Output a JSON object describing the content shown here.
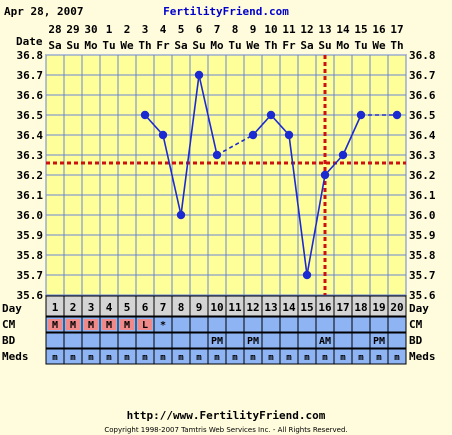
{
  "header": {
    "date": "Apr 28, 2007",
    "site": "FertilityFriend.com"
  },
  "footer": {
    "url": "http://www.FertilityFriend.com",
    "copyright": "Copyright 1998-2007 Tamtris Web Services Inc. - All Rights Reserved."
  },
  "colors": {
    "background": "#fffbdd",
    "plot_area": "#ffff9a",
    "grid": "#6a84d6",
    "line": "#1c2ad2",
    "coverline": "#cc1111",
    "row_blue": "#8fb4f4",
    "row_pink": "#f08a8a",
    "row_grey": "#d4d4d4"
  },
  "chart_data": {
    "type": "line",
    "title": "",
    "row_labels": {
      "date": "Date",
      "day": "Day",
      "cm": "CM",
      "bd": "BD",
      "meds": "Meds"
    },
    "dates": [
      "28",
      "29",
      "30",
      "1",
      "2",
      "3",
      "4",
      "5",
      "6",
      "7",
      "8",
      "9",
      "10",
      "11",
      "12",
      "13",
      "14",
      "15",
      "16",
      "17"
    ],
    "weekdays": [
      "Sa",
      "Su",
      "Mo",
      "Tu",
      "We",
      "Th",
      "Fr",
      "Sa",
      "Su",
      "Mo",
      "Tu",
      "We",
      "Th",
      "Fr",
      "Sa",
      "Su",
      "Mo",
      "Tu",
      "We",
      "Th"
    ],
    "days": [
      1,
      2,
      3,
      4,
      5,
      6,
      7,
      8,
      9,
      10,
      11,
      12,
      13,
      14,
      15,
      16,
      17,
      18,
      19,
      20
    ],
    "temps": [
      null,
      null,
      null,
      null,
      null,
      36.5,
      36.4,
      36.0,
      36.7,
      36.3,
      null,
      36.4,
      36.5,
      36.4,
      35.7,
      36.2,
      36.3,
      36.5,
      null,
      36.5
    ],
    "ylim": [
      35.6,
      36.8
    ],
    "yticks": [
      "36.8",
      "36.7",
      "36.6",
      "36.5",
      "36.4",
      "36.3",
      "36.2",
      "36.1",
      "36.0",
      "35.9",
      "35.8",
      "35.7",
      "35.6"
    ],
    "coverline": 36.26,
    "ovulation_day": 16,
    "cm": [
      "M",
      "M",
      "M",
      "M",
      "M",
      "L",
      "*",
      "",
      "",
      "",
      "",
      "",
      "",
      "",
      "",
      "",
      "",
      "",
      "",
      ""
    ],
    "cm_kinds": [
      "pink",
      "pink",
      "pink",
      "pink",
      "pink",
      "pink",
      "none",
      "none",
      "none",
      "none",
      "none",
      "none",
      "none",
      "none",
      "none",
      "none",
      "none",
      "none",
      "none",
      "none"
    ],
    "bd": [
      "",
      "",
      "",
      "",
      "",
      "",
      "",
      "",
      "",
      "PM",
      "",
      "PM",
      "",
      "",
      "",
      "AM",
      "",
      "",
      "PM",
      ""
    ],
    "meds": [
      "m",
      "m",
      "m",
      "m",
      "m",
      "m",
      "m",
      "m",
      "m",
      "m",
      "m",
      "m",
      "m",
      "m",
      "m",
      "m",
      "m",
      "m",
      "m",
      "m"
    ],
    "grid": true
  }
}
